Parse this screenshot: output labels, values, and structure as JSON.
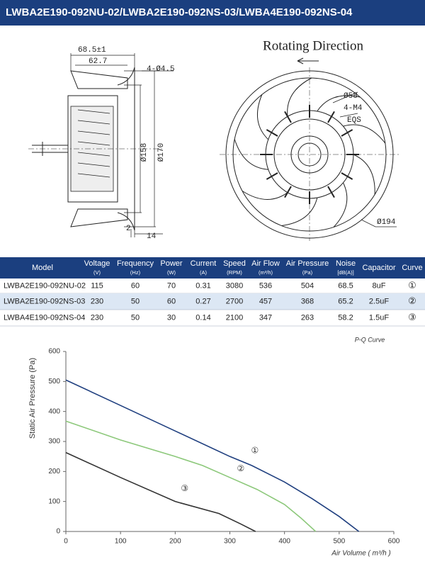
{
  "header": {
    "title": "LWBA2E190-092NU-02/LWBA2E190-092NS-03/LWBA4E190-092NS-04"
  },
  "drawing": {
    "side_labels": [
      "68.5±1",
      "62.7",
      "4-Ø4.5",
      "Ø158",
      "Ø170",
      "2",
      "14"
    ],
    "front_title": "Rotating Direction",
    "front_labels": [
      "Ø58",
      "4-M4",
      "EQS",
      "Ø194"
    ]
  },
  "table": {
    "headers": [
      [
        "Model",
        ""
      ],
      [
        "Voltage",
        "(V)"
      ],
      [
        "Frequency",
        "(Hz)"
      ],
      [
        "Power",
        "(W)"
      ],
      [
        "Current",
        "(A)"
      ],
      [
        "Speed",
        "(RPM)"
      ],
      [
        "Air Flow",
        "(m³/h)"
      ],
      [
        "Air Pressure",
        "(Pa)"
      ],
      [
        "Noise",
        "[dB(A)]"
      ],
      [
        "Capacitor",
        ""
      ],
      [
        "Curve",
        ""
      ]
    ],
    "rows": [
      [
        "LWBA2E190-092NU-02",
        "115",
        "60",
        "70",
        "0.31",
        "3080",
        "536",
        "504",
        "68.5",
        "8uF",
        "①"
      ],
      [
        "LWBA2E190-092NS-03",
        "230",
        "50",
        "60",
        "0.27",
        "2700",
        "457",
        "368",
        "65.2",
        "2.5uF",
        "②"
      ],
      [
        "LWBA4E190-092NS-04",
        "230",
        "50",
        "30",
        "0.14",
        "2100",
        "347",
        "263",
        "58.2",
        "1.5uF",
        "③"
      ]
    ]
  },
  "chart_data": {
    "type": "line",
    "title": "P-Q Curve",
    "x_label": "Air Volume ( m³/h )",
    "y_label": "Static Air Pressure  (Pa)",
    "xlim": [
      0,
      600
    ],
    "xticks": [
      0,
      100,
      200,
      300,
      400,
      500,
      600
    ],
    "ylim": [
      0,
      600
    ],
    "yticks": [
      0,
      100,
      200,
      300,
      400,
      500,
      600
    ],
    "grid": false,
    "series": [
      {
        "name": "①",
        "color": "#1f3f7f",
        "x": [
          0,
          100,
          200,
          300,
          340,
          400,
          450,
          500,
          536
        ],
        "values": [
          505,
          420,
          335,
          250,
          220,
          165,
          110,
          50,
          0
        ]
      },
      {
        "name": "②",
        "color": "#8cc87a",
        "x": [
          0,
          100,
          200,
          250,
          300,
          350,
          400,
          430,
          457
        ],
        "values": [
          368,
          305,
          250,
          220,
          180,
          140,
          90,
          45,
          0
        ]
      },
      {
        "name": "③",
        "color": "#333333",
        "x": [
          0,
          100,
          200,
          280,
          320,
          347
        ],
        "values": [
          263,
          180,
          100,
          60,
          25,
          0
        ]
      }
    ]
  }
}
